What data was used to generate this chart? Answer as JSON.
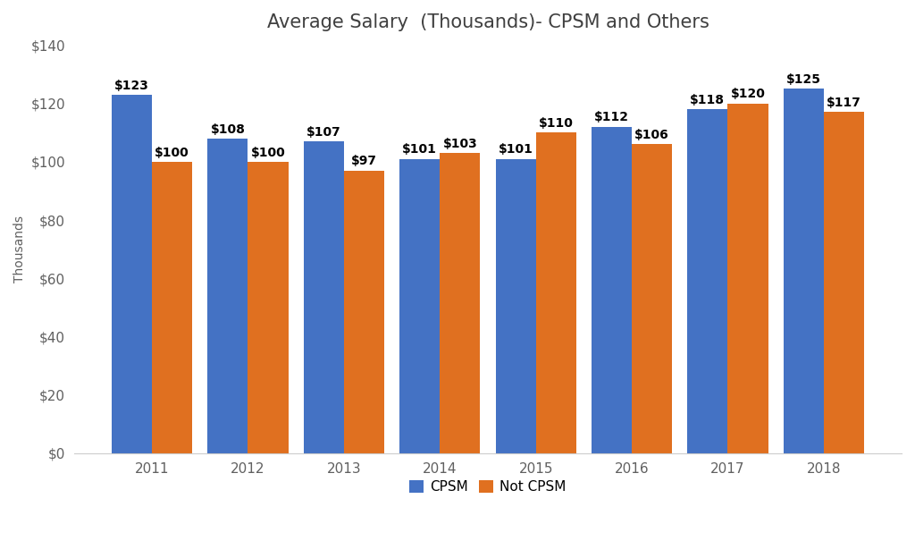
{
  "title": "Average Salary  (Thousands)- CPSM and Others",
  "ylabel": "Thousands",
  "years": [
    2011,
    2012,
    2013,
    2014,
    2015,
    2016,
    2017,
    2018
  ],
  "cpsm": [
    123,
    108,
    107,
    101,
    101,
    112,
    118,
    125
  ],
  "not_cpsm": [
    100,
    100,
    97,
    103,
    110,
    106,
    120,
    117
  ],
  "cpsm_color": "#4472C4",
  "not_cpsm_color": "#E07020",
  "background_color": "#FFFFFF",
  "ylim": [
    0,
    140
  ],
  "yticks": [
    0,
    20,
    40,
    60,
    80,
    100,
    120,
    140
  ],
  "bar_width": 0.42,
  "legend_labels": [
    "CPSM",
    "Not CPSM"
  ],
  "title_fontsize": 15,
  "axis_label_fontsize": 10,
  "tick_fontsize": 11,
  "annotation_fontsize": 10
}
